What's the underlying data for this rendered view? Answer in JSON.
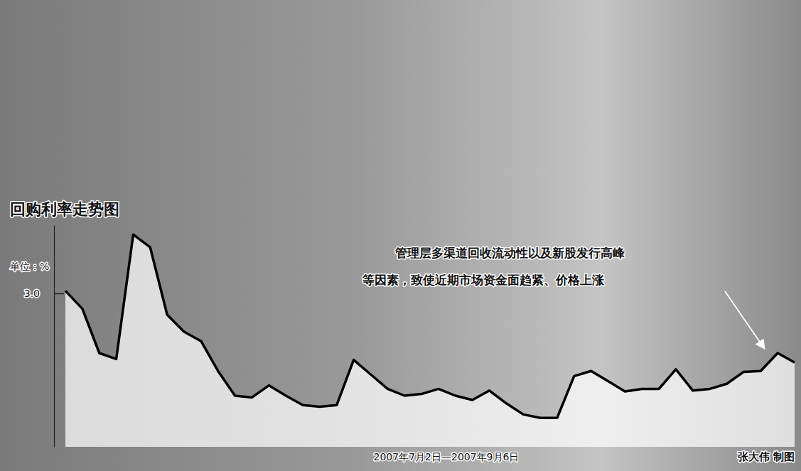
{
  "chart_data": {
    "type": "line",
    "title": "回购利率走势图",
    "y_label": "单位：%",
    "x_label": "2007年7月2日—2007年9月6日",
    "annotation": [
      "管理层多渠道回收流动性以及新股发行高峰",
      "等因素，致使近期市场资金面趋紧、价格上涨"
    ],
    "credit": "张大伟 制图",
    "categories": [
      null,
      null,
      null,
      null,
      null,
      null,
      null,
      null,
      null,
      null,
      null,
      null,
      null,
      null,
      null,
      null,
      null,
      null,
      null,
      null,
      null,
      null,
      null,
      null,
      null,
      null,
      null,
      null,
      null,
      null,
      null,
      null,
      null,
      null,
      null,
      null,
      null,
      null,
      null,
      null,
      null,
      null,
      null,
      null
    ],
    "values": [
      3.03,
      2.82,
      2.3,
      2.23,
      3.69,
      3.54,
      2.75,
      2.55,
      2.44,
      2.09,
      1.8,
      1.78,
      1.92,
      1.8,
      1.69,
      1.67,
      1.69,
      2.22,
      2.05,
      1.88,
      1.8,
      1.82,
      1.88,
      1.8,
      1.75,
      1.86,
      1.71,
      1.58,
      1.54,
      1.54,
      2.03,
      2.09,
      1.97,
      1.85,
      1.88,
      1.88,
      2.11,
      1.86,
      1.88,
      1.94,
      2.08,
      2.09,
      2.3,
      2.19
    ],
    "color": "#000000",
    "ylim": [
      1.2,
      3.8
    ],
    "yticks": [
      {
        "value": 3,
        "label": "3.0"
      }
    ],
    "grid": false,
    "tick_labels": "y"
  }
}
